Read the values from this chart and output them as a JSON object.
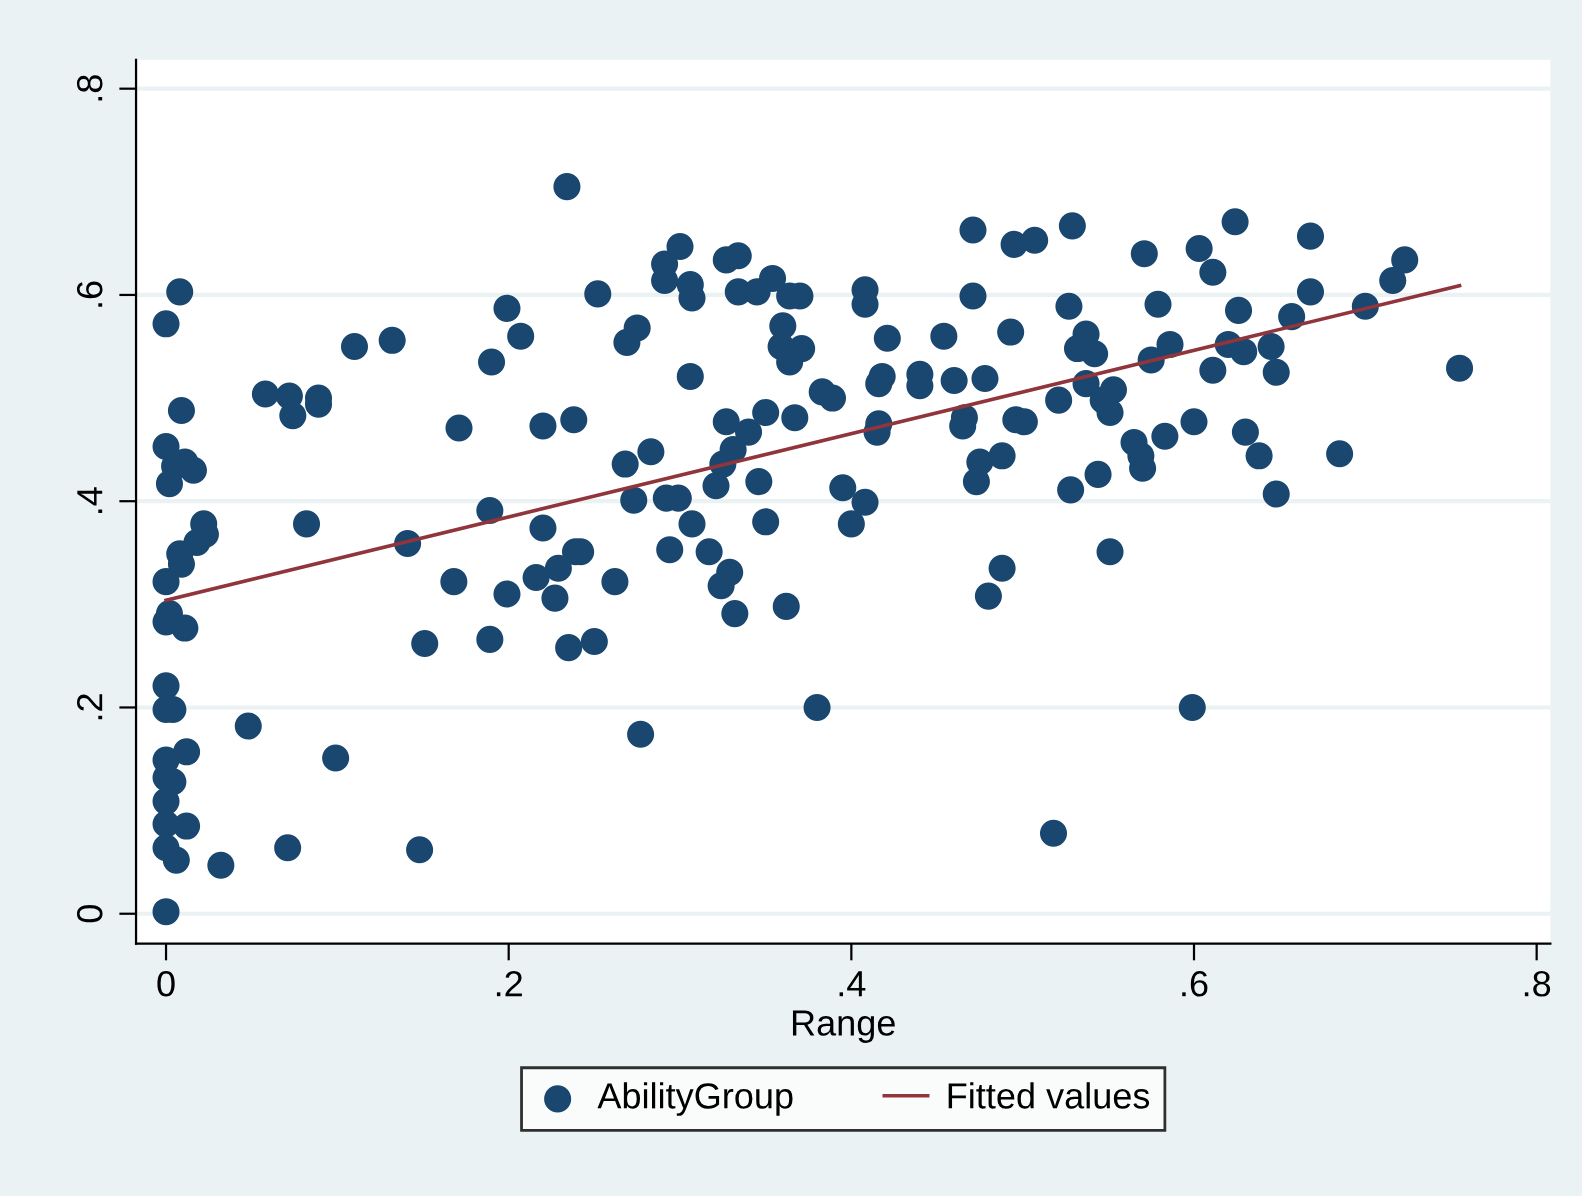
{
  "chart_data": {
    "type": "scatter",
    "xlabel": "Range",
    "grid": "y",
    "legend": "bottom",
    "marker": "circle",
    "xlim": [
      -0.0175,
      0.808
    ],
    "ylim": [
      -0.029,
      0.828
    ],
    "xticks": [
      0,
      {
        "value": 0.2,
        "label": ".2"
      },
      {
        "value": 0.4,
        "label": ".4"
      },
      {
        "value": 0.6,
        "label": ".6"
      },
      {
        "value": 0.8,
        "label": ".8"
      }
    ],
    "yticks": [
      0,
      {
        "value": 0.2,
        "label": ".2"
      },
      {
        "value": 0.4,
        "label": ".4"
      },
      {
        "value": 0.6,
        "label": ".6"
      },
      {
        "value": 0.8,
        "label": ".8"
      }
    ],
    "series": [
      {
        "name": "AbilityGroup",
        "color": "#1a476f",
        "x": [
          0.234,
          0.008,
          0,
          0.252,
          0.009,
          0.058,
          0.072,
          0.074,
          0.089,
          0.089,
          0.11,
          0.132,
          0.199,
          0.207,
          0.19,
          0.171,
          0.22,
          0.238,
          0,
          0.005,
          0.011,
          0.016,
          0.002,
          0.022,
          0.023,
          0.018,
          0.008,
          0.009,
          0,
          0.082,
          0.141,
          0.189,
          0.22,
          0.239,
          0.229,
          0.216,
          0.227,
          0.168,
          0.199,
          0.002,
          0,
          0.011,
          0.151,
          0.189,
          0.235,
          0.25,
          0,
          0,
          0.004,
          0.048,
          0.099,
          0.012,
          0,
          0,
          0.004,
          0,
          0,
          0.012,
          0,
          0.006,
          0.032,
          0.071,
          0.148,
          0,
          0.3,
          0.291,
          0.291,
          0.306,
          0.307,
          0.327,
          0.334,
          0.334,
          0.345,
          0.354,
          0.364,
          0.37,
          0.275,
          0.269,
          0.306,
          0.36,
          0.359,
          0.371,
          0.364,
          0.408,
          0.408,
          0.421,
          0.454,
          0.471,
          0.471,
          0.495,
          0.507,
          0.493,
          0.383,
          0.389,
          0.416,
          0.418,
          0.44,
          0.44,
          0.46,
          0.478,
          0.327,
          0.34,
          0.35,
          0.367,
          0.416,
          0.415,
          0.466,
          0.465,
          0.496,
          0.501,
          0.521,
          0.268,
          0.283,
          0.331,
          0.325,
          0.321,
          0.346,
          0.475,
          0.488,
          0.473,
          0.273,
          0.292,
          0.299,
          0.395,
          0.408,
          0.307,
          0.35,
          0.4,
          0.242,
          0.294,
          0.317,
          0.329,
          0.324,
          0.332,
          0.362,
          0.262,
          0.488,
          0.48,
          0.38,
          0.277,
          0.518,
          0.529,
          0.571,
          0.603,
          0.611,
          0.624,
          0.668,
          0.527,
          0.579,
          0.626,
          0.668,
          0.657,
          0.7,
          0.716,
          0.723,
          0.537,
          0.532,
          0.542,
          0.575,
          0.586,
          0.62,
          0.629,
          0.645,
          0.611,
          0.648,
          0.755,
          0.537,
          0.553,
          0.547,
          0.551,
          0.6,
          0.565,
          0.569,
          0.583,
          0.57,
          0.544,
          0.528,
          0.63,
          0.638,
          0.648,
          0.685,
          0.551,
          0.599
        ],
        "values": [
          0.705,
          0.603,
          0.572,
          0.601,
          0.488,
          0.504,
          0.502,
          0.483,
          0.5,
          0.494,
          0.55,
          0.556,
          0.587,
          0.56,
          0.535,
          0.471,
          0.473,
          0.479,
          0.453,
          0.434,
          0.438,
          0.43,
          0.417,
          0.378,
          0.368,
          0.36,
          0.349,
          0.339,
          0.322,
          0.378,
          0.359,
          0.391,
          0.374,
          0.351,
          0.335,
          0.326,
          0.306,
          0.322,
          0.31,
          0.291,
          0.283,
          0.277,
          0.262,
          0.266,
          0.258,
          0.264,
          0.221,
          0.198,
          0.198,
          0.182,
          0.151,
          0.157,
          0.149,
          0.132,
          0.128,
          0.109,
          0.087,
          0.085,
          0.064,
          0.052,
          0.047,
          0.064,
          0.062,
          0.002,
          0.647,
          0.63,
          0.614,
          0.61,
          0.597,
          0.634,
          0.638,
          0.603,
          0.603,
          0.616,
          0.599,
          0.599,
          0.568,
          0.554,
          0.521,
          0.57,
          0.55,
          0.548,
          0.535,
          0.605,
          0.591,
          0.558,
          0.56,
          0.663,
          0.599,
          0.649,
          0.653,
          0.564,
          0.506,
          0.5,
          0.514,
          0.521,
          0.523,
          0.512,
          0.517,
          0.519,
          0.477,
          0.467,
          0.486,
          0.481,
          0.475,
          0.467,
          0.481,
          0.473,
          0.479,
          0.477,
          0.498,
          0.436,
          0.448,
          0.45,
          0.436,
          0.415,
          0.419,
          0.438,
          0.444,
          0.419,
          0.401,
          0.403,
          0.403,
          0.413,
          0.399,
          0.378,
          0.38,
          0.378,
          0.351,
          0.353,
          0.351,
          0.331,
          0.318,
          0.291,
          0.298,
          0.322,
          0.335,
          0.308,
          0.2,
          0.174,
          0.078,
          0.667,
          0.64,
          0.645,
          0.622,
          0.671,
          0.657,
          0.589,
          0.591,
          0.585,
          0.603,
          0.579,
          0.589,
          0.614,
          0.634,
          0.562,
          0.548,
          0.543,
          0.537,
          0.552,
          0.552,
          0.545,
          0.55,
          0.527,
          0.525,
          0.529,
          0.514,
          0.508,
          0.498,
          0.486,
          0.477,
          0.457,
          0.444,
          0.463,
          0.432,
          0.426,
          0.411,
          0.467,
          0.444,
          0.407,
          0.446,
          0.351,
          0.2
        ]
      },
      {
        "name": "Fitted values",
        "type": "line",
        "color": "#90353b",
        "marker": "none",
        "x": [
          0,
          0.755
        ],
        "values": [
          0.304,
          0.609
        ]
      }
    ]
  }
}
